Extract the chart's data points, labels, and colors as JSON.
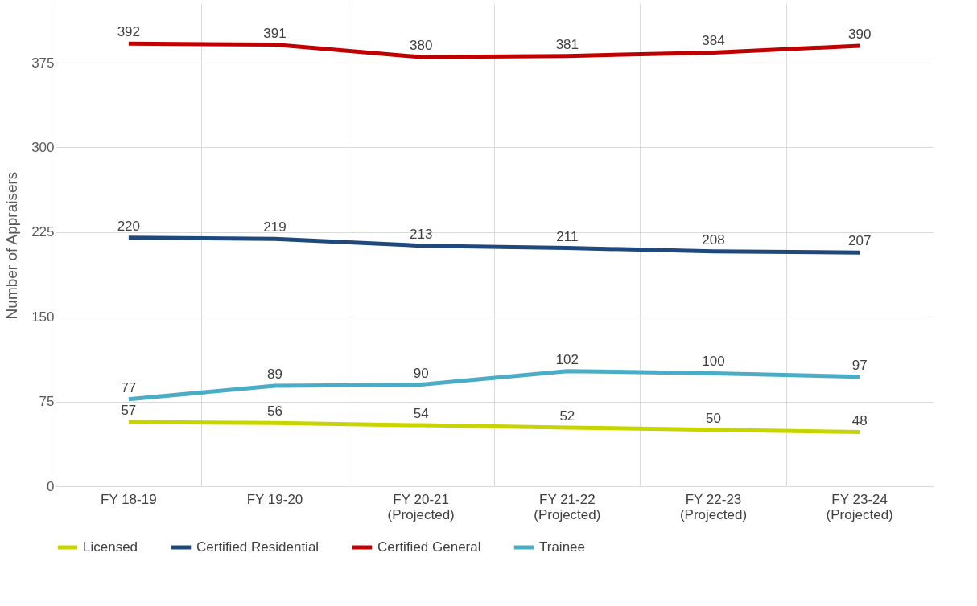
{
  "chart_data": {
    "type": "line",
    "ylabel": "Number of Appraisers",
    "categories": [
      "FY 18-19",
      "FY 19-20",
      "FY 20-21\n(Projected)",
      "FY 21-22\n(Projected)",
      "FY 22-23\n(Projected)",
      "FY 23-24\n(Projected)"
    ],
    "series": [
      {
        "name": "Licensed",
        "color": "#c8d400",
        "values": [
          57,
          56,
          54,
          52,
          50,
          48
        ]
      },
      {
        "name": "Certified Residential",
        "color": "#1f497d",
        "values": [
          220,
          219,
          213,
          211,
          208,
          207
        ]
      },
      {
        "name": "Certified General",
        "color": "#c00000",
        "values": [
          392,
          391,
          380,
          381,
          384,
          390
        ]
      },
      {
        "name": "Trainee",
        "color": "#4bacc6",
        "values": [
          77,
          89,
          90,
          102,
          100,
          97
        ]
      }
    ],
    "ylim": [
      0,
      427
    ],
    "yticks": [
      0,
      75,
      150,
      225,
      300,
      375
    ],
    "grid": true,
    "legend": "bottom",
    "data_labels": true,
    "marker": "none",
    "line_style": "solid"
  }
}
